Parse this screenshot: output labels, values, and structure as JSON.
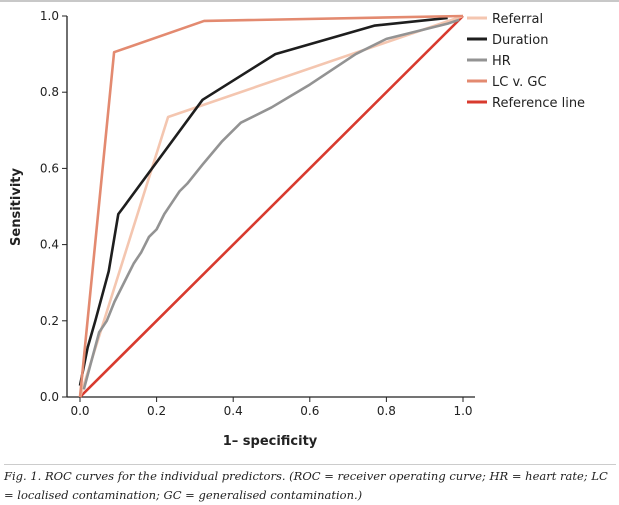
{
  "chart_data": {
    "type": "line",
    "xlabel": "1– specificity",
    "ylabel": "Sensitivity",
    "xlim": [
      0,
      1
    ],
    "ylim": [
      0,
      1
    ],
    "xticks": [
      "0.0",
      "0.2",
      "0.4",
      "0.6",
      "0.8",
      "1.0"
    ],
    "yticks": [
      "0.0",
      "0.2",
      "0.4",
      "0.6",
      "0.8",
      "1.0"
    ],
    "legend_position": "top-right",
    "series": [
      {
        "name": "Referral",
        "color": "#f4c6b0",
        "points": [
          [
            0,
            0
          ],
          [
            0.23,
            0.735
          ],
          [
            1,
            1
          ]
        ]
      },
      {
        "name": "Duration",
        "color": "#1e1e1e",
        "points": [
          [
            0,
            0.03
          ],
          [
            0.02,
            0.13
          ],
          [
            0.04,
            0.2
          ],
          [
            0.075,
            0.33
          ],
          [
            0.1,
            0.48
          ],
          [
            0.115,
            0.5
          ],
          [
            0.32,
            0.78
          ],
          [
            0.51,
            0.9
          ],
          [
            0.77,
            0.975
          ],
          [
            0.96,
            0.995
          ]
        ]
      },
      {
        "name": "HR",
        "color": "#939393",
        "points": [
          [
            0.01,
            0.02
          ],
          [
            0.05,
            0.17
          ],
          [
            0.07,
            0.2
          ],
          [
            0.09,
            0.25
          ],
          [
            0.12,
            0.31
          ],
          [
            0.14,
            0.35
          ],
          [
            0.16,
            0.38
          ],
          [
            0.18,
            0.42
          ],
          [
            0.2,
            0.44
          ],
          [
            0.22,
            0.48
          ],
          [
            0.24,
            0.51
          ],
          [
            0.26,
            0.54
          ],
          [
            0.28,
            0.56
          ],
          [
            0.32,
            0.61
          ],
          [
            0.37,
            0.67
          ],
          [
            0.42,
            0.72
          ],
          [
            0.5,
            0.76
          ],
          [
            0.55,
            0.79
          ],
          [
            0.6,
            0.82
          ],
          [
            0.66,
            0.86
          ],
          [
            0.72,
            0.9
          ],
          [
            0.8,
            0.94
          ],
          [
            0.88,
            0.96
          ],
          [
            0.96,
            0.98
          ],
          [
            0.99,
            0.99
          ]
        ]
      },
      {
        "name": "LC v. GC",
        "color": "#e38a70",
        "points": [
          [
            0,
            0
          ],
          [
            0.089,
            0.905
          ],
          [
            0.324,
            0.987
          ],
          [
            1,
            1
          ]
        ]
      },
      {
        "name": "Reference line",
        "color": "#d83a2e",
        "points": [
          [
            0,
            0
          ],
          [
            1,
            1
          ]
        ]
      }
    ]
  },
  "caption": "Fig. 1. ROC curves for the individual predictors. (ROC = receiver operating curve; HR = heart rate; LC = localised contamination; GC = generalised contamination.)"
}
